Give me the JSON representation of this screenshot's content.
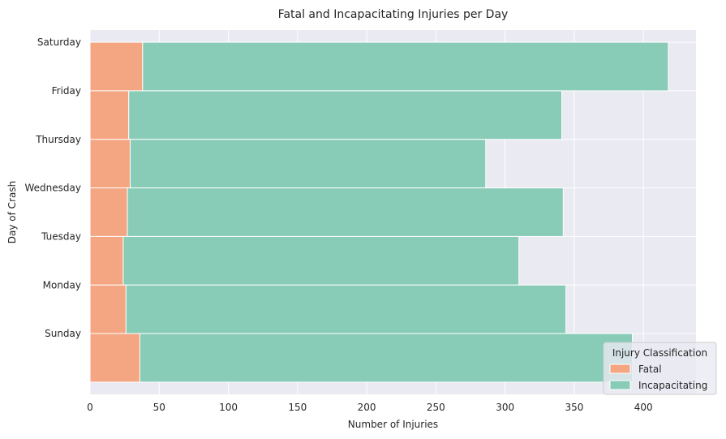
{
  "chart_data": {
    "type": "bar",
    "orientation": "horizontal",
    "stacked": true,
    "title": "Fatal and Incapacitating Injuries per Day",
    "xlabel": "Number of Injuries",
    "ylabel": "Day of Crash",
    "categories": [
      "Saturday",
      "Friday",
      "Thursday",
      "Wednesday",
      "Tuesday",
      "Monday",
      "Sunday"
    ],
    "series": [
      {
        "name": "Fatal",
        "color": "#f4a582",
        "values": [
          38,
          28,
          29,
          27,
          24,
          26,
          36
        ]
      },
      {
        "name": "Incapacitating",
        "color": "#88cbb7",
        "values": [
          380,
          313,
          257,
          315,
          286,
          318,
          356
        ]
      }
    ],
    "xlim": [
      0,
      438
    ],
    "xticks": [
      0,
      50,
      100,
      150,
      200,
      250,
      300,
      350,
      400
    ],
    "grid": true,
    "legend": {
      "title": "Injury Classification",
      "position": "bottom-right"
    },
    "background_color": "#eaeaf2"
  }
}
